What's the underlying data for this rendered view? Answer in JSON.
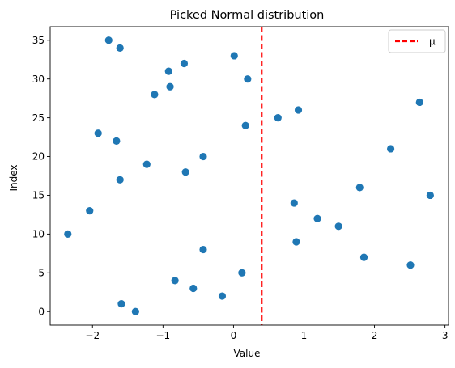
{
  "chart_data": {
    "type": "scatter",
    "title": "Picked Normal distribution",
    "xlabel": "Value",
    "ylabel": "Index",
    "xlim": [
      -2.6,
      3.05
    ],
    "ylim": [
      -1.75,
      36.75
    ],
    "xticks": [
      -2,
      -1,
      0,
      1,
      2,
      3
    ],
    "yticks": [
      0,
      5,
      10,
      15,
      20,
      25,
      30,
      35
    ],
    "grid": false,
    "legend_position": "top-right",
    "point_color": "#1f77b4",
    "mean_line": {
      "label": "μ",
      "x": 0.4,
      "color": "#ff0000",
      "style": "dashed"
    },
    "points": [
      {
        "x": -1.39,
        "y": 0
      },
      {
        "x": -1.59,
        "y": 1
      },
      {
        "x": -0.16,
        "y": 2
      },
      {
        "x": -0.57,
        "y": 3
      },
      {
        "x": -0.83,
        "y": 4
      },
      {
        "x": 0.12,
        "y": 5
      },
      {
        "x": 2.51,
        "y": 6
      },
      {
        "x": 1.85,
        "y": 7
      },
      {
        "x": -0.43,
        "y": 8
      },
      {
        "x": 0.89,
        "y": 9
      },
      {
        "x": -2.35,
        "y": 10
      },
      {
        "x": 1.49,
        "y": 11
      },
      {
        "x": 1.19,
        "y": 12
      },
      {
        "x": -2.04,
        "y": 13
      },
      {
        "x": 0.86,
        "y": 14
      },
      {
        "x": 2.79,
        "y": 15
      },
      {
        "x": 1.79,
        "y": 16
      },
      {
        "x": -1.61,
        "y": 17
      },
      {
        "x": -0.68,
        "y": 18
      },
      {
        "x": -1.23,
        "y": 19
      },
      {
        "x": -0.43,
        "y": 20
      },
      {
        "x": 2.23,
        "y": 21
      },
      {
        "x": -1.66,
        "y": 22
      },
      {
        "x": -1.92,
        "y": 23
      },
      {
        "x": 0.17,
        "y": 24
      },
      {
        "x": 0.63,
        "y": 25
      },
      {
        "x": 0.92,
        "y": 26
      },
      {
        "x": 2.64,
        "y": 27
      },
      {
        "x": -1.12,
        "y": 28
      },
      {
        "x": -0.9,
        "y": 29
      },
      {
        "x": 0.2,
        "y": 30
      },
      {
        "x": -0.92,
        "y": 31
      },
      {
        "x": -0.7,
        "y": 32
      },
      {
        "x": 0.01,
        "y": 33
      },
      {
        "x": -1.61,
        "y": 34
      },
      {
        "x": -1.77,
        "y": 35
      }
    ]
  }
}
